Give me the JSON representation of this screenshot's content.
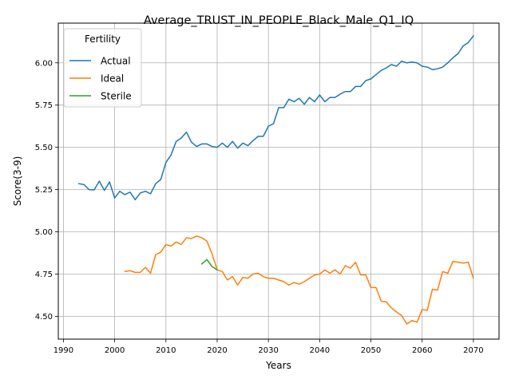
{
  "chart_data": {
    "type": "line",
    "title": "Average_TRUST_IN_PEOPLE_Black_Male_Q1_IQ",
    "xlabel": "Years",
    "ylabel": "Score(3-9)",
    "xlim": [
      1989,
      2075
    ],
    "ylim": [
      4.365,
      6.235
    ],
    "xticks": [
      1990,
      2000,
      2010,
      2020,
      2030,
      2040,
      2050,
      2060,
      2070
    ],
    "yticks": [
      4.5,
      4.75,
      5.0,
      5.25,
      5.5,
      5.75,
      6.0
    ],
    "ytick_labels": [
      "4.50",
      "4.75",
      "5.00",
      "5.25",
      "5.50",
      "5.75",
      "6.00"
    ],
    "grid": true,
    "legend": {
      "title": "Fertility",
      "placement": "top-left"
    },
    "series": [
      {
        "name": "Actual",
        "color": "#1f77b4",
        "x": [
          1993,
          1994,
          1995,
          1996,
          1997,
          1998,
          1999,
          2000,
          2001,
          2002,
          2003,
          2004,
          2005,
          2006,
          2007,
          2008,
          2009,
          2010,
          2011,
          2012,
          2013,
          2014,
          2015,
          2016,
          2017,
          2018,
          2019,
          2020,
          2021,
          2022,
          2023,
          2024,
          2025,
          2026,
          2027,
          2028,
          2029,
          2030,
          2031,
          2032,
          2033,
          2034,
          2035,
          2036,
          2037,
          2038,
          2039,
          2040,
          2041,
          2042,
          2043,
          2044,
          2045,
          2046,
          2047,
          2048,
          2049,
          2050,
          2051,
          2052,
          2053,
          2054,
          2055,
          2056,
          2057,
          2058,
          2059,
          2060,
          2061,
          2062,
          2063,
          2064,
          2065,
          2066,
          2067,
          2068,
          2069,
          2070
        ],
        "values": [
          5.285,
          5.28,
          5.25,
          5.248,
          5.3,
          5.245,
          5.295,
          5.2,
          5.24,
          5.22,
          5.235,
          5.19,
          5.23,
          5.24,
          5.225,
          5.285,
          5.31,
          5.41,
          5.455,
          5.535,
          5.555,
          5.59,
          5.53,
          5.505,
          5.52,
          5.52,
          5.505,
          5.5,
          5.525,
          5.5,
          5.535,
          5.495,
          5.525,
          5.51,
          5.54,
          5.565,
          5.565,
          5.625,
          5.64,
          5.735,
          5.735,
          5.785,
          5.77,
          5.79,
          5.755,
          5.795,
          5.77,
          5.81,
          5.77,
          5.795,
          5.795,
          5.815,
          5.83,
          5.83,
          5.86,
          5.86,
          5.895,
          5.905,
          5.93,
          5.955,
          5.97,
          5.99,
          5.98,
          6.01,
          6.0,
          6.005,
          6.0,
          5.98,
          5.975,
          5.96,
          5.965,
          5.975,
          6.0,
          6.03,
          6.055,
          6.1,
          6.12,
          6.16
        ]
      },
      {
        "name": "Ideal",
        "color": "#ff7f0e",
        "x": [
          2002,
          2003,
          2004,
          2005,
          2006,
          2007,
          2008,
          2009,
          2010,
          2011,
          2012,
          2013,
          2014,
          2015,
          2016,
          2017,
          2018,
          2019,
          2020,
          2021,
          2022,
          2023,
          2024,
          2025,
          2026,
          2027,
          2028,
          2029,
          2030,
          2031,
          2032,
          2033,
          2034,
          2035,
          2036,
          2037,
          2038,
          2039,
          2040,
          2041,
          2042,
          2043,
          2044,
          2045,
          2046,
          2047,
          2048,
          2049,
          2050,
          2051,
          2052,
          2053,
          2054,
          2055,
          2056,
          2057,
          2058,
          2059,
          2060,
          2061,
          2062,
          2063,
          2064,
          2065,
          2066,
          2067,
          2068,
          2069,
          2070
        ],
        "values": [
          4.765,
          4.77,
          4.76,
          4.76,
          4.79,
          4.755,
          4.865,
          4.88,
          4.925,
          4.915,
          4.94,
          4.925,
          4.965,
          4.96,
          4.975,
          4.965,
          4.945,
          4.87,
          4.775,
          4.765,
          4.715,
          4.735,
          4.685,
          4.73,
          4.725,
          4.75,
          4.755,
          4.735,
          4.725,
          4.725,
          4.715,
          4.705,
          4.685,
          4.7,
          4.69,
          4.705,
          4.725,
          4.745,
          4.75,
          4.775,
          4.755,
          4.775,
          4.75,
          4.8,
          4.785,
          4.82,
          4.745,
          4.745,
          4.67,
          4.67,
          4.59,
          4.585,
          4.55,
          4.525,
          4.505,
          4.455,
          4.475,
          4.465,
          4.54,
          4.535,
          4.66,
          4.655,
          4.765,
          4.755,
          4.825,
          4.82,
          4.815,
          4.82,
          4.725
        ]
      },
      {
        "name": "Sterile",
        "color": "#2ca02c",
        "x": [
          2017,
          2018,
          2019,
          2020
        ],
        "values": [
          4.81,
          4.835,
          4.795,
          4.775
        ]
      }
    ]
  }
}
